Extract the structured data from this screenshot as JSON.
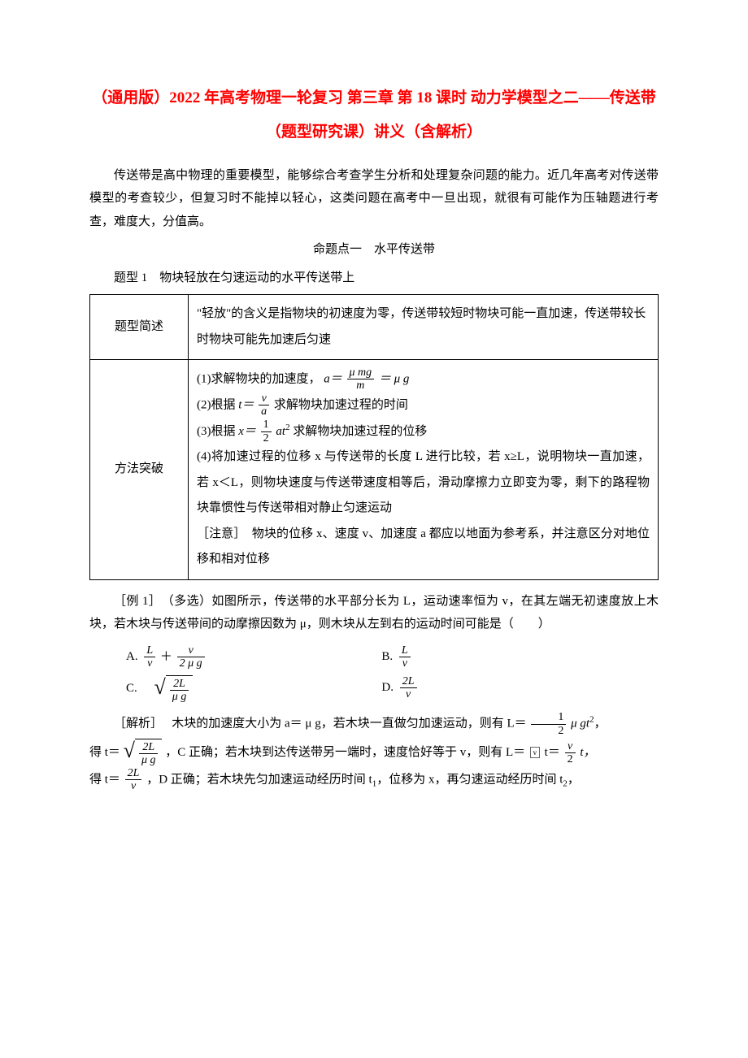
{
  "colors": {
    "title": "#ff0000",
    "text": "#000000",
    "background": "#ffffff",
    "table_border": "#000000"
  },
  "typography": {
    "body_fontsize_pt": 11,
    "title_fontsize_pt": 14,
    "font_family": "SimSun"
  },
  "title": "（通用版）2022 年高考物理一轮复习 第三章 第 18 课时 动力学模型之二——传送带（题型研究课）讲义（含解析）",
  "intro": "传送带是高中物理的重要模型，能够综合考查学生分析和处理复杂问题的能力。近几年高考对传送带模型的考查较少，但复习时不能掉以轻心，这类问题在高考中一旦出现，就很有可能作为压轴题进行考查，难度大，分值高。",
  "section_heading": "命题点一　水平传送带",
  "type_heading": "题型 1　物块轻放在匀速运动的水平传送带上",
  "table": {
    "row1_label": "题型简述",
    "row1_content": "\"轻放\"的含义是指物块的初速度为零，传送带较短时物块可能一直加速，传送带较长时物块可能先加速后匀速",
    "row2_label": "方法突破",
    "row2_items": {
      "item1_pre": "(1)求解物块的加速度，",
      "item1_eq_lhs": "a＝",
      "item1_frac_num": "μ mg",
      "item1_frac_den": "m",
      "item1_eq_rhs": "＝ μ g",
      "item2_pre": "(2)根据 ",
      "item2_eq_lhs": "t＝",
      "item2_frac_num": "v",
      "item2_frac_den": "a",
      "item2_post": "求解物块加速过程的时间",
      "item3_pre": "(3)根据 ",
      "item3_eq_lhs": "x＝",
      "item3_frac_num": "1",
      "item3_frac_den": "2",
      "item3_mid": "at",
      "item3_sup": "2",
      "item3_post": " 求解物块加速过程的位移",
      "item4": "(4)将加速过程的位移 x 与传送带的长度 L 进行比较，若 x≥L，说明物块一直加速，若 x＜L，则物块速度与传送带速度相等后，滑动摩擦力立即变为零，剩下的路程物块靠惯性与传送带相对静止匀速运动",
      "note": "［注意］　物块的位移 x、速度 v、加速度 a 都应以地面为参考系，并注意区分对地位移和相对位移"
    }
  },
  "example": {
    "label": "［例 1］　（多选）如图所示，传送带的水平部分长为 L，运动速率恒为 v，在其左端无初速度放上木块，若木块与传送带间的动摩擦因数为 μ，则木块从左到右的运动时间可能是（　　）",
    "options": {
      "A": {
        "label": "A.",
        "f1_num": "L",
        "f1_den": "v",
        "plus": "＋",
        "f2_num": "v",
        "f2_den": "2 μ g"
      },
      "B": {
        "label": "B.",
        "f_num": "L",
        "f_den": "v"
      },
      "C": {
        "label": "C.　",
        "f_num": "2L",
        "f_den": "μ g"
      },
      "D": {
        "label": "D.",
        "f_num": "2L",
        "f_den": "v"
      }
    }
  },
  "analysis": {
    "label": "［解析］　",
    "p1_a": "木块的加速度大小为 a＝ μ g，若木块一直做匀加速运动，则有 L＝",
    "p1_frac1_num": "1",
    "p1_frac1_den": "2",
    "p1_b": " μ gt",
    "p1_sup": "2",
    "p1_c": "，",
    "p2_a": "得 t＝ ",
    "p2_sqrt_num": "2L",
    "p2_sqrt_den": "μ g",
    "p2_b": "，C 正确；若木块到达传送带另一端时，速度恰好等于 v，则有 L＝",
    "p2_boxed": "v",
    "p2_c": " t＝",
    "p2_frac_num": "v",
    "p2_frac_den": "2",
    "p2_d": "t，",
    "p3_a": "得 t＝",
    "p3_frac_num": "2L",
    "p3_frac_den": "v",
    "p3_b": "，D 正确；若木块先匀加速运动经历时间 t",
    "p3_sub1": "1",
    "p3_c": "，位移为 x，再匀速运动经历时间 t",
    "p3_sub2": "2",
    "p3_d": "，"
  }
}
